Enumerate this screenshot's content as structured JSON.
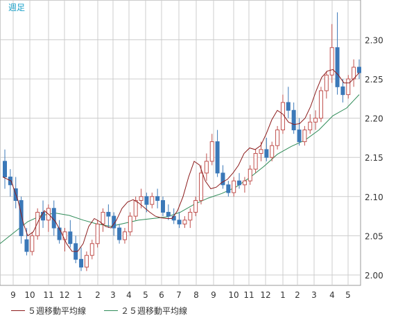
{
  "chart_data": {
    "type": "candlestick",
    "period_label": "週足",
    "ylim": [
      1.98,
      2.34
    ],
    "y_ticks": [
      "2.30",
      "2.25",
      "2.20",
      "2.15",
      "2.10",
      "2.05",
      "2.00"
    ],
    "x_ticks": [
      "9",
      "10",
      "11",
      "12",
      "1",
      "2",
      "3",
      "4",
      "5",
      "6",
      "7",
      "8",
      "9",
      "10",
      "11",
      "12",
      "1",
      "2",
      "3",
      "4",
      "5"
    ],
    "colors": {
      "up": "#c0504d",
      "down": "#3b78b8",
      "ma5": "#8b1a1a",
      "ma25": "#2e8b57",
      "grid": "#cccccc",
      "period_label": "#1aa0c8"
    },
    "series": [
      {
        "name": "５週移動平均線",
        "color": "#8b1a1a"
      },
      {
        "name": "２５週移動平均線",
        "color": "#2e8b57"
      }
    ]
  }
}
